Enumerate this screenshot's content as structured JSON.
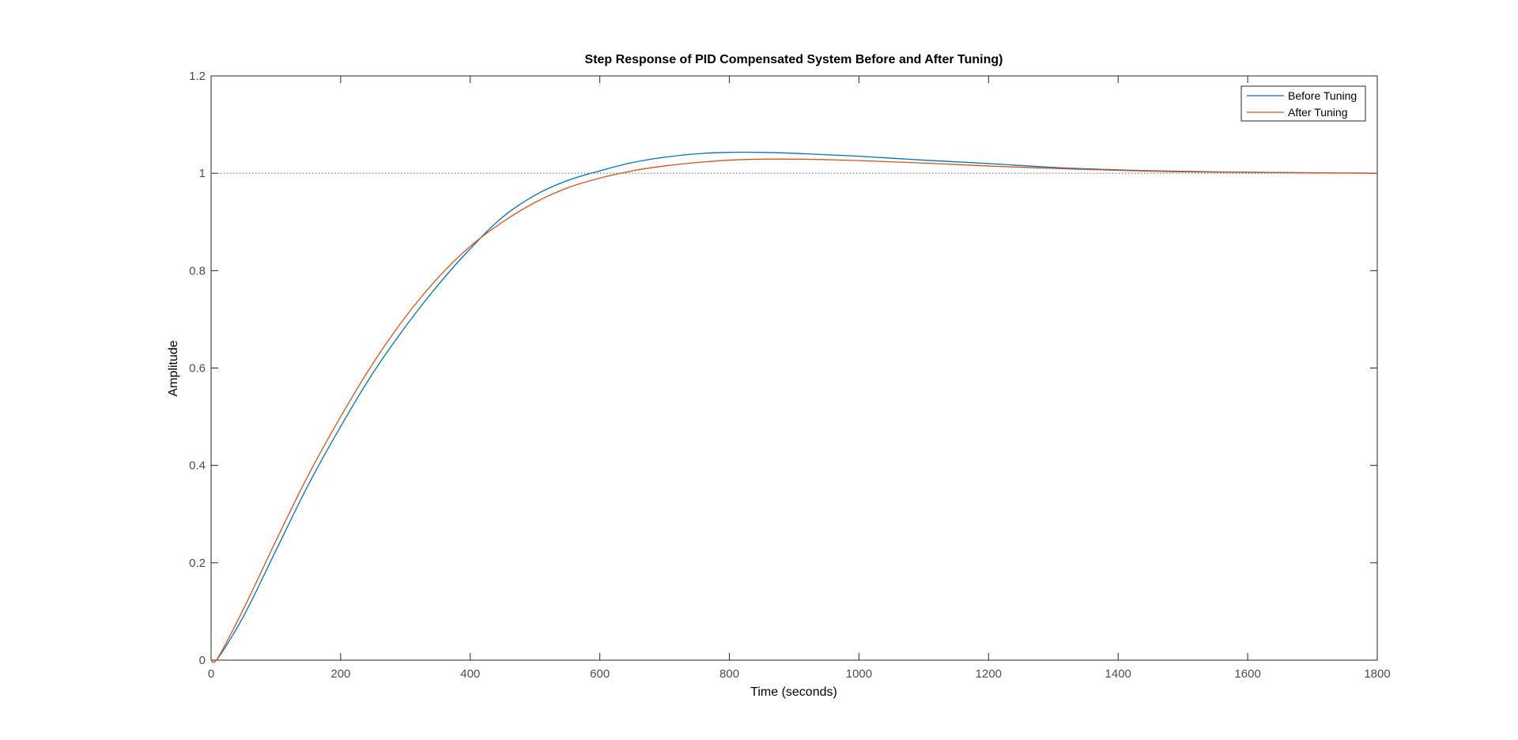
{
  "chart_data": {
    "type": "line",
    "title": "Step Response of PID Compensated System Before and After Tuning)",
    "xlabel": "Time (seconds)",
    "ylabel": "Amplitude",
    "xlim": [
      0,
      1800
    ],
    "ylim": [
      0,
      1.2
    ],
    "xticks": [
      0,
      200,
      400,
      600,
      800,
      1000,
      1200,
      1400,
      1600,
      1800
    ],
    "yticks": [
      0,
      0.2,
      0.4,
      0.6,
      0.8,
      1,
      1.2
    ],
    "xtick_labels": [
      "0",
      "200",
      "400",
      "600",
      "800",
      "1000",
      "1200",
      "1400",
      "1600",
      "1800"
    ],
    "ytick_labels": [
      "0",
      "0.2",
      "0.4",
      "0.6",
      "0.8",
      "1",
      "1.2"
    ],
    "grid": false,
    "legend": "top-right",
    "reference_line": {
      "y": 1,
      "style": "dotted"
    },
    "series": [
      {
        "name": "Before Tuning",
        "color": "#0072BD",
        "x": [
          0,
          10,
          50,
          100,
          150,
          200,
          250,
          300,
          350,
          400,
          450,
          500,
          550,
          600,
          650,
          700,
          750,
          800,
          850,
          900,
          950,
          1000,
          1100,
          1200,
          1300,
          1400,
          1500,
          1600,
          1700,
          1800
        ],
        "y": [
          0,
          0.003,
          0.09,
          0.225,
          0.36,
          0.48,
          0.59,
          0.685,
          0.77,
          0.845,
          0.91,
          0.955,
          0.985,
          1.005,
          1.022,
          1.033,
          1.04,
          1.043,
          1.043,
          1.041,
          1.038,
          1.035,
          1.027,
          1.02,
          1.012,
          1.007,
          1.004,
          1.002,
          1.001,
          1.0
        ]
      },
      {
        "name": "After Tuning",
        "color": "#D95319",
        "x": [
          0,
          10,
          50,
          100,
          150,
          200,
          250,
          300,
          350,
          400,
          450,
          500,
          550,
          600,
          650,
          700,
          750,
          800,
          850,
          900,
          950,
          1000,
          1100,
          1200,
          1300,
          1400,
          1500,
          1600,
          1700,
          1800
        ],
        "y": [
          0,
          0.004,
          0.105,
          0.245,
          0.38,
          0.5,
          0.61,
          0.705,
          0.785,
          0.85,
          0.9,
          0.94,
          0.97,
          0.99,
          1.005,
          1.015,
          1.022,
          1.027,
          1.029,
          1.029,
          1.028,
          1.026,
          1.021,
          1.015,
          1.01,
          1.006,
          1.003,
          1.002,
          1.001,
          1.0
        ]
      }
    ]
  }
}
